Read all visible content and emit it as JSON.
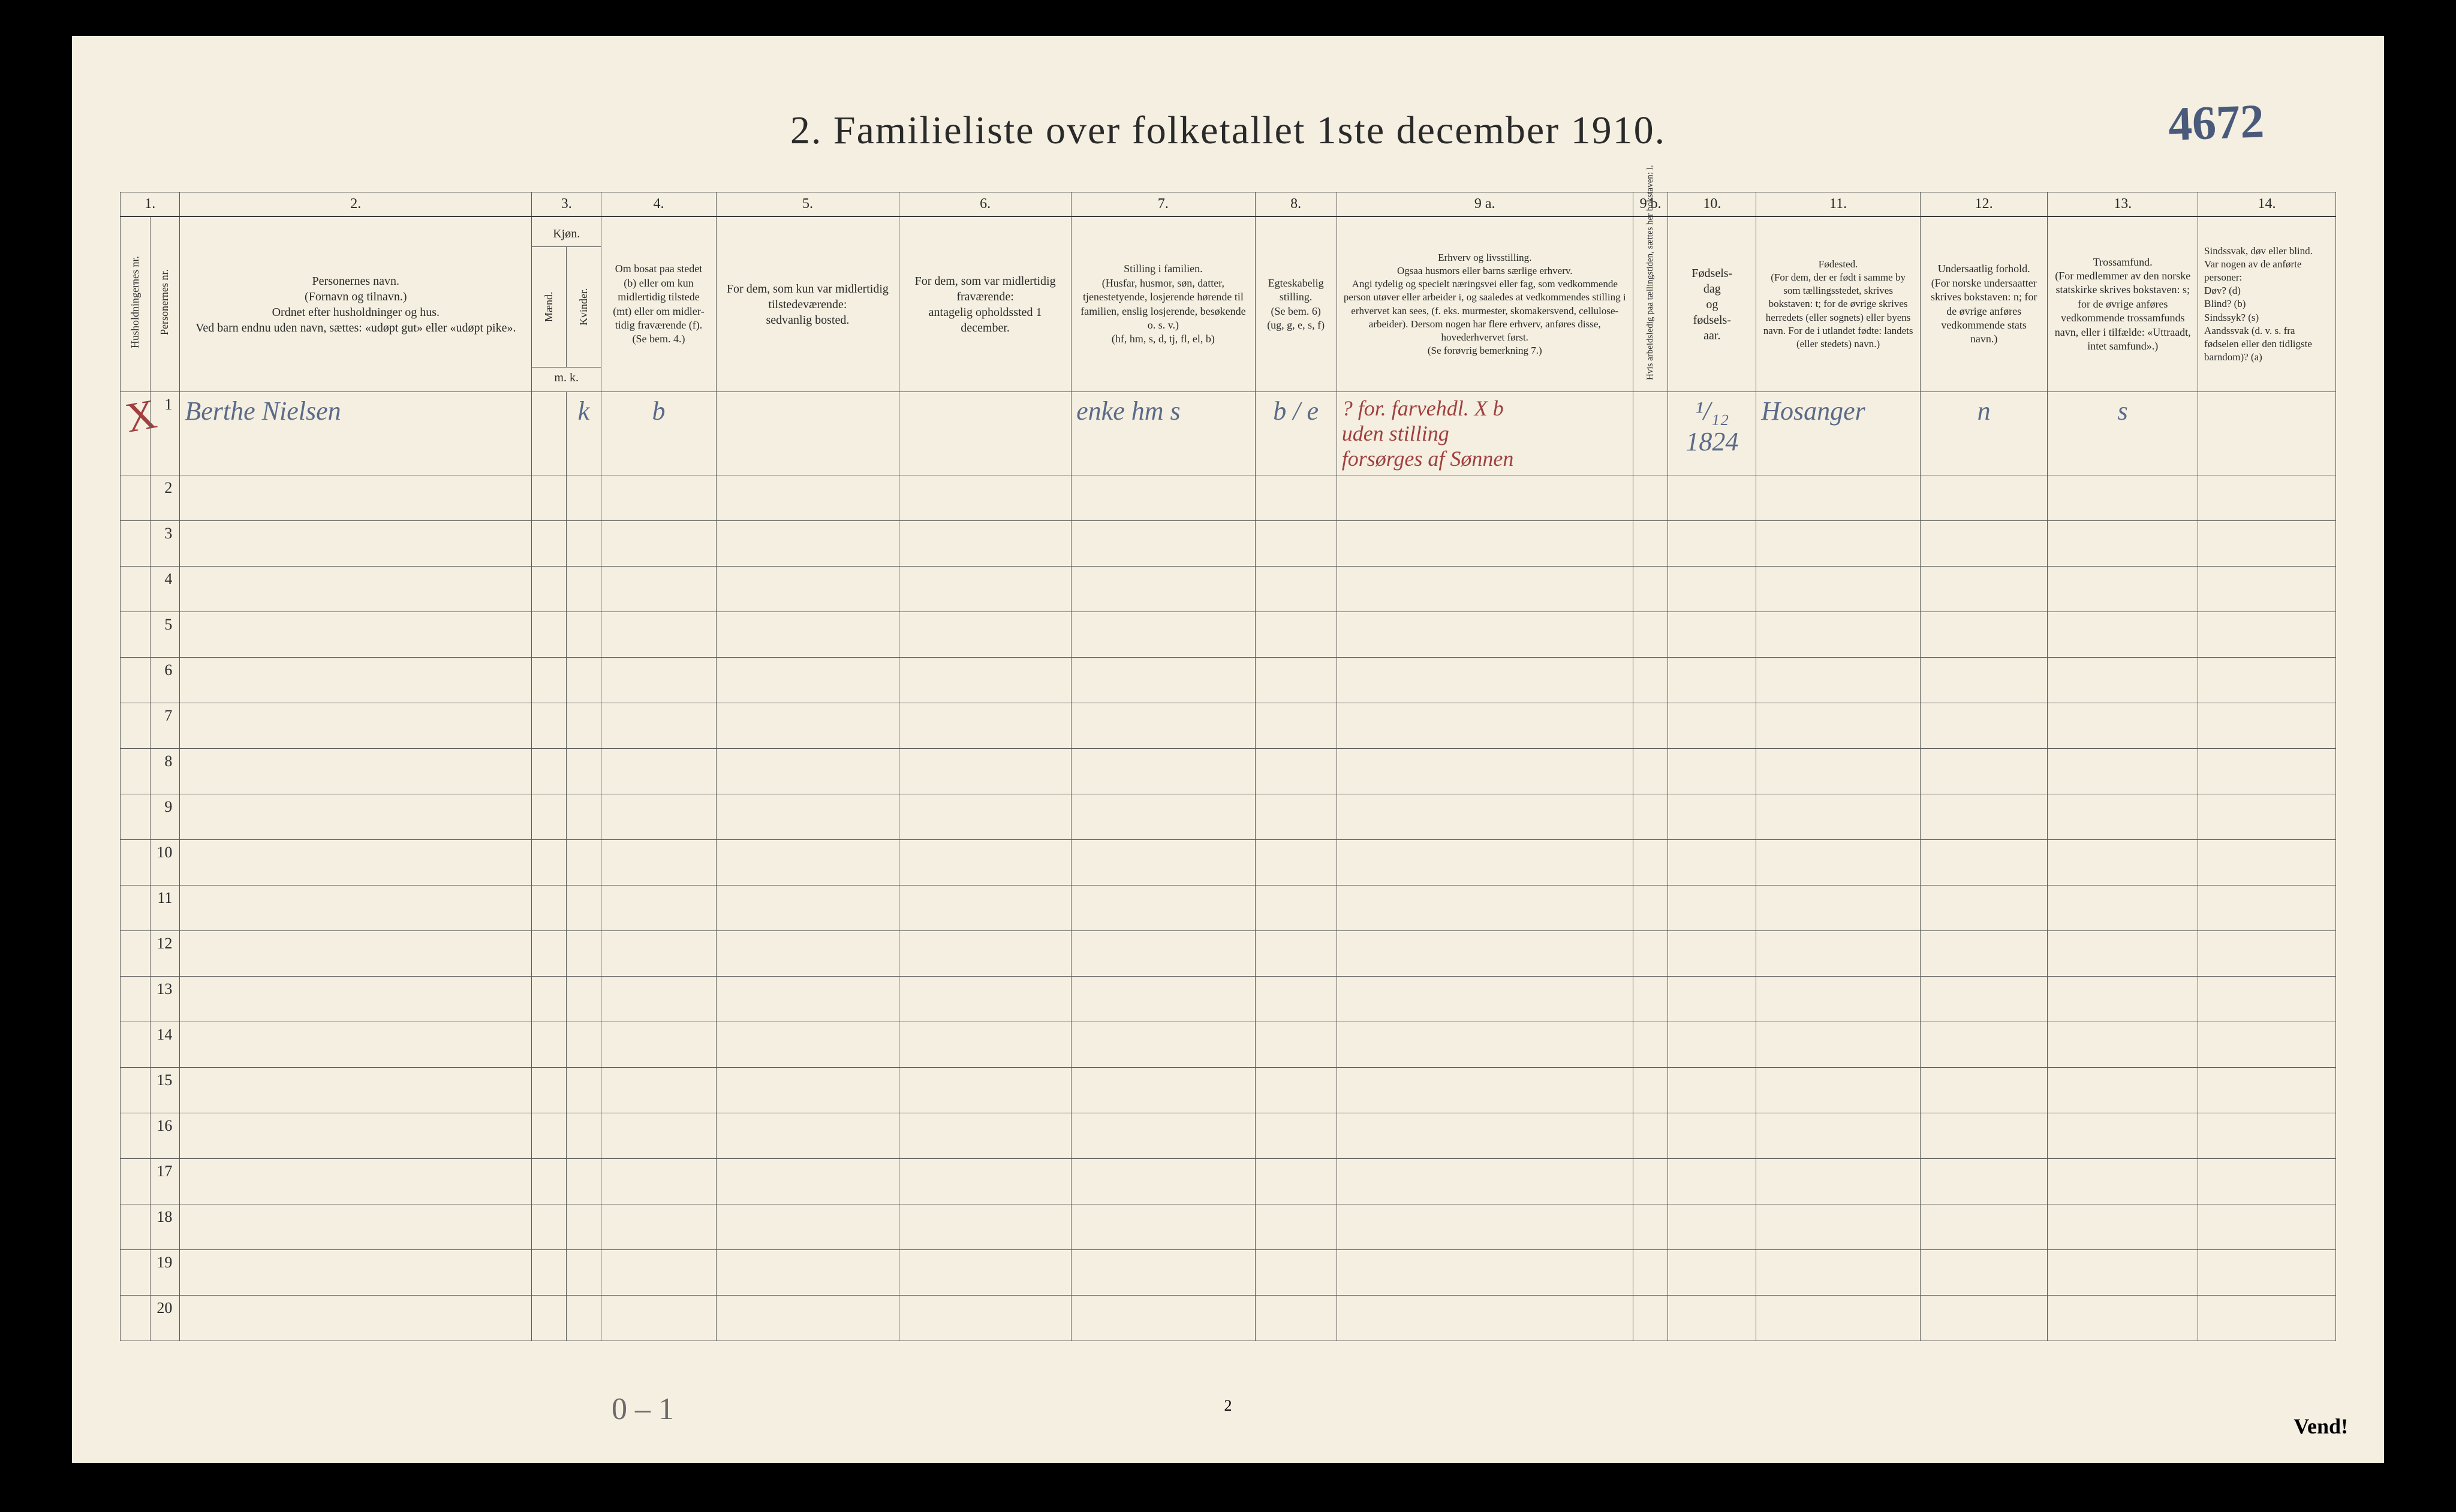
{
  "title": "2.  Familieliste over folketallet 1ste december 1910.",
  "handwritten_top_right": "4672",
  "col_numbers": [
    "1.",
    "",
    "2.",
    "3.",
    "",
    "4.",
    "5.",
    "6.",
    "7.",
    "8.",
    "9 a.",
    "9 b.",
    "10.",
    "11.",
    "12.",
    "13.",
    "14."
  ],
  "headers": {
    "c1": "Husholdningernes nr.",
    "c1b": "Personernes nr.",
    "c2": "Personernes navn.\n(Fornavn og tilnavn.)\nOrdnet efter husholdninger og hus.\nVed barn endnu uden navn, sættes: «udøpt gut» eller «udøpt pike».",
    "c3_top": "Kjøn.",
    "c3a": "Mænd.",
    "c3b": "Kvinder.",
    "c3_sub": "m.  k.",
    "c4": "Om bosat paa stedet (b) eller om kun midler­tidig tilstede (mt) eller om midler­tidig fra­værende (f).\n(Se bem. 4.)",
    "c5": "For dem, som kun var midlertidig tilstede­værende:\nsedvanlig bosted.",
    "c6": "For dem, som var midlertidig fraværende:\nantagelig opholdssted 1 december.",
    "c7": "Stilling i familien.\n(Husfar, husmor, søn, datter, tjenestetyende, lo­sjerende hørende til familien, enslig losjerende, besøkende o. s. v.)\n(hf, hm, s, d, tj, fl, el, b)",
    "c8": "Egteska­belig stilling.\n(Se bem. 6)\n(ug, g, e, s, f)",
    "c9a": "Erhverv og livsstilling.\nOgsaa husmors eller barns særlige erhverv.\nAngi tydelig og specielt næringsvei eller fag, som vedkommende person utøver eller arbeider i, og saaledes at vedkommendes stilling i erhvervet kan sees, (f. eks. murmester, skomakersvend, cellulose­arbeider). Dersom nogen har flere erhverv, anføres disse, hovederhvervet først.\n(Se forøvrig bemerkning 7.)",
    "c9b": "Hvis arbeidsledig paa tællingstiden, sættes her bokstaven: l.",
    "c10": "Fødsels-\ndag\nog\nfødsels-\naar.",
    "c11": "Fødested.\n(For dem, der er født i samme by som tællingsstedet, skrives bokstaven: t; for de øvrige skrives herredets (eller sognets) eller byens navn. For de i utlandet fødte: landets (eller stedets) navn.)",
    "c12": "Undersaatlig forhold.\n(For norske under­saatter skrives bokstaven: n; for de øvrige anføres vedkom­mende stats navn.)",
    "c13": "Trossamfund.\n(For medlemmer av den norske statskirke skrives bokstaven: s; for de øvrige anføres vedkommende tros­samfunds navn, eller i til­fælde: «Uttraadt, intet samfund».)",
    "c14": "Sindssvak, døv eller blind.\nVar nogen av de anførte personer:\nDøv?      (d)\nBlind?    (b)\nSindssyk? (s)\nAandssvak (d. v. s. fra fødselen eller den tid­ligste barndom)? (a)"
  },
  "rows": [
    {
      "num": "1",
      "name": "Berthe Nielsen",
      "sex_m": "",
      "sex_k": "k",
      "col4": "b",
      "col5": "",
      "col6": "",
      "col7": "enke hm   s",
      "col8": "b / e",
      "col9a": "? for. farvehdl. X b\nuden stilling\nforsørges af Sønnen",
      "col9b": "",
      "col10": "¹/₁₂\n1824",
      "col11": "Hosanger",
      "col12": "n",
      "col13": "s",
      "col14": ""
    },
    {
      "num": "2"
    },
    {
      "num": "3"
    },
    {
      "num": "4"
    },
    {
      "num": "5"
    },
    {
      "num": "6"
    },
    {
      "num": "7"
    },
    {
      "num": "8"
    },
    {
      "num": "9"
    },
    {
      "num": "10"
    },
    {
      "num": "11"
    },
    {
      "num": "12"
    },
    {
      "num": "13"
    },
    {
      "num": "14"
    },
    {
      "num": "15"
    },
    {
      "num": "16"
    },
    {
      "num": "17"
    },
    {
      "num": "18"
    },
    {
      "num": "19"
    },
    {
      "num": "20"
    }
  ],
  "x_mark": "X",
  "page_footer_num": "2",
  "bottom_handwriting": "0 – 1",
  "vend": "Vend!",
  "colors": {
    "paper": "#f4efe0",
    "ink": "#2a2a2a",
    "rule": "#5a5a5a",
    "hand_blue": "#5a6a8a",
    "hand_red": "#a04040"
  }
}
